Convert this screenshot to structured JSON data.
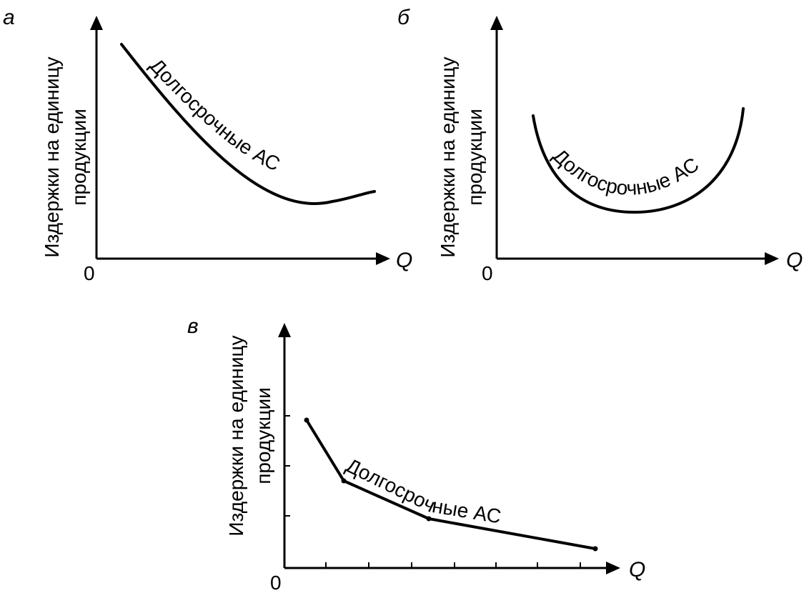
{
  "panels": {
    "a": {
      "letter": "а",
      "y_label_line1": "Издержки на единицу",
      "y_label_line2": "продукции",
      "origin": "0",
      "x_label": "Q",
      "curve_label": "Долгосрочные АС"
    },
    "b": {
      "letter": "б",
      "y_label_line1": "Издержки на единицу",
      "y_label_line2": "продукции",
      "origin": "0",
      "x_label": "Q",
      "curve_label": "Долгосрочные АС"
    },
    "c": {
      "letter": "в",
      "y_label_line1": "Издержки на единицу",
      "y_label_line2": "продукции",
      "origin": "0",
      "x_label": "Q",
      "curve_label": "Долгосрочные АС"
    }
  }
}
